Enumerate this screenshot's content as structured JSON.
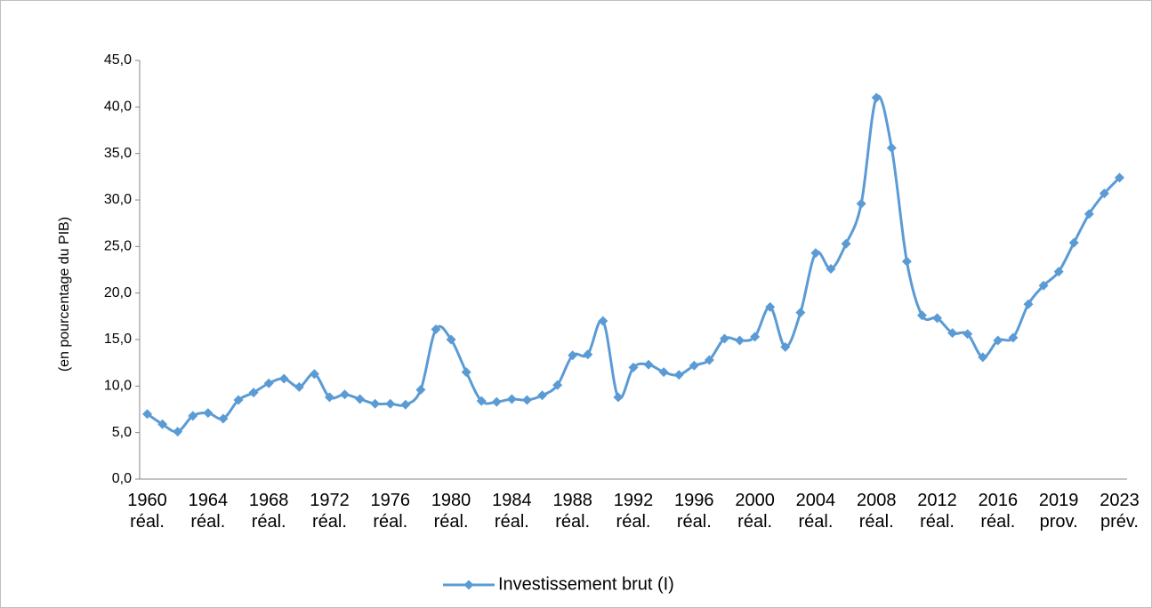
{
  "chart_data": {
    "type": "line",
    "y_label": "(en pourcentage du PIB)",
    "categories": [
      "1960\nréal.",
      null,
      null,
      null,
      "1964\nréal.",
      null,
      null,
      null,
      "1968\nréal.",
      null,
      null,
      null,
      "1972\nréal.",
      null,
      null,
      null,
      "1976\nréal.",
      null,
      null,
      null,
      "1980\nréal.",
      null,
      null,
      null,
      "1984\nréal.",
      null,
      null,
      null,
      "1988\nréal.",
      null,
      null,
      null,
      "1992\nréal.",
      null,
      null,
      null,
      "1996\nréal.",
      null,
      null,
      null,
      "2000\nréal.",
      null,
      null,
      null,
      "2004\nréal.",
      null,
      null,
      null,
      "2008\nréal.",
      null,
      null,
      null,
      "2012\nréal.",
      null,
      null,
      null,
      "2016\nréal.",
      null,
      null,
      null,
      "2019\nprov.",
      null,
      null,
      null,
      "2023\nprév."
    ],
    "series": [
      {
        "name": "Investissement brut (I)",
        "color": "#5b9bd5",
        "values": [
          7.0,
          5.9,
          5.1,
          6.8,
          7.1,
          6.5,
          8.5,
          9.3,
          10.3,
          10.8,
          9.9,
          11.3,
          8.8,
          9.1,
          8.6,
          8.1,
          8.1,
          8.0,
          9.6,
          16.1,
          15.0,
          11.5,
          8.4,
          8.3,
          8.6,
          8.5,
          9.0,
          10.1,
          13.3,
          13.4,
          17.0,
          8.8,
          12.0,
          12.3,
          11.5,
          11.2,
          12.2,
          12.8,
          15.1,
          14.9,
          15.3,
          18.5,
          14.2,
          17.9,
          24.3,
          22.6,
          25.3,
          29.6,
          41.0,
          35.6,
          23.4,
          17.6,
          17.3,
          15.7,
          15.6,
          13.1,
          14.9,
          15.2,
          18.8,
          20.8,
          22.3,
          25.4,
          28.5,
          30.7,
          32.4
        ]
      }
    ],
    "ylim": [
      0,
      45
    ],
    "yticks": [
      {
        "value": 0,
        "label": "0,0"
      },
      {
        "value": 5,
        "label": "5,0"
      },
      {
        "value": 10,
        "label": "10,0"
      },
      {
        "value": 15,
        "label": "15,0"
      },
      {
        "value": 20,
        "label": "20,0"
      },
      {
        "value": 25,
        "label": "25,0"
      },
      {
        "value": 30,
        "label": "30,0"
      },
      {
        "value": 35,
        "label": "35,0"
      },
      {
        "value": 40,
        "label": "40,0"
      },
      {
        "value": 45,
        "label": "45,0"
      }
    ],
    "grid": false,
    "legend": "bottom"
  }
}
